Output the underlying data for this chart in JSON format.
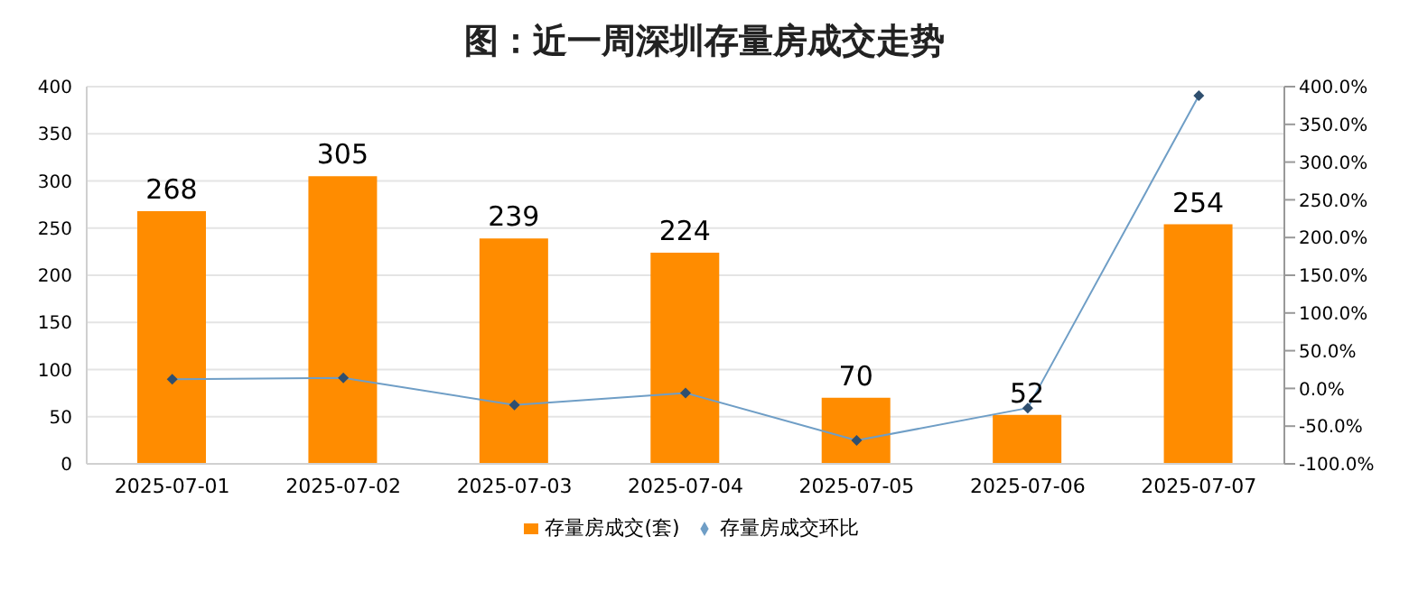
{
  "chart_data": {
    "type": "bar",
    "title": "图：近一周深圳存量房成交走势",
    "categories": [
      "2025-07-01",
      "2025-07-02",
      "2025-07-03",
      "2025-07-04",
      "2025-07-05",
      "2025-07-06",
      "2025-07-07"
    ],
    "series": [
      {
        "name": "存量房成交(套)",
        "color": "#ff8c00",
        "values": [
          268,
          305,
          239,
          224,
          70,
          52,
          254
        ],
        "value_labels": [
          "268",
          "305",
          "239",
          "224",
          "70",
          "52",
          "254"
        ]
      },
      {
        "name": "存量房成交环比",
        "type": "line",
        "axis": "y2",
        "color": "#6f9ec6",
        "marker": "diamond",
        "values": [
          12,
          14,
          -22,
          -6,
          -69,
          -26,
          388
        ]
      }
    ],
    "ylim": [
      0,
      400
    ],
    "yticks": [
      0,
      50,
      100,
      150,
      200,
      250,
      300,
      350,
      400
    ],
    "y2lim": [
      -100,
      400
    ],
    "y2ticks": [
      {
        "value": -100,
        "label": "-100.0%"
      },
      {
        "value": -50,
        "label": "-50.0%"
      },
      {
        "value": 0,
        "label": "0.0%"
      },
      {
        "value": 50,
        "label": "50.0%"
      },
      {
        "value": 100,
        "label": "100.0%"
      },
      {
        "value": 150,
        "label": "150.0%"
      },
      {
        "value": 200,
        "label": "200.0%"
      },
      {
        "value": 250,
        "label": "250.0%"
      },
      {
        "value": 300,
        "label": "300.0%"
      },
      {
        "value": 350,
        "label": "350.0%"
      },
      {
        "value": 400,
        "label": "400.0%"
      }
    ],
    "grid": "y",
    "legend": "bottom"
  }
}
